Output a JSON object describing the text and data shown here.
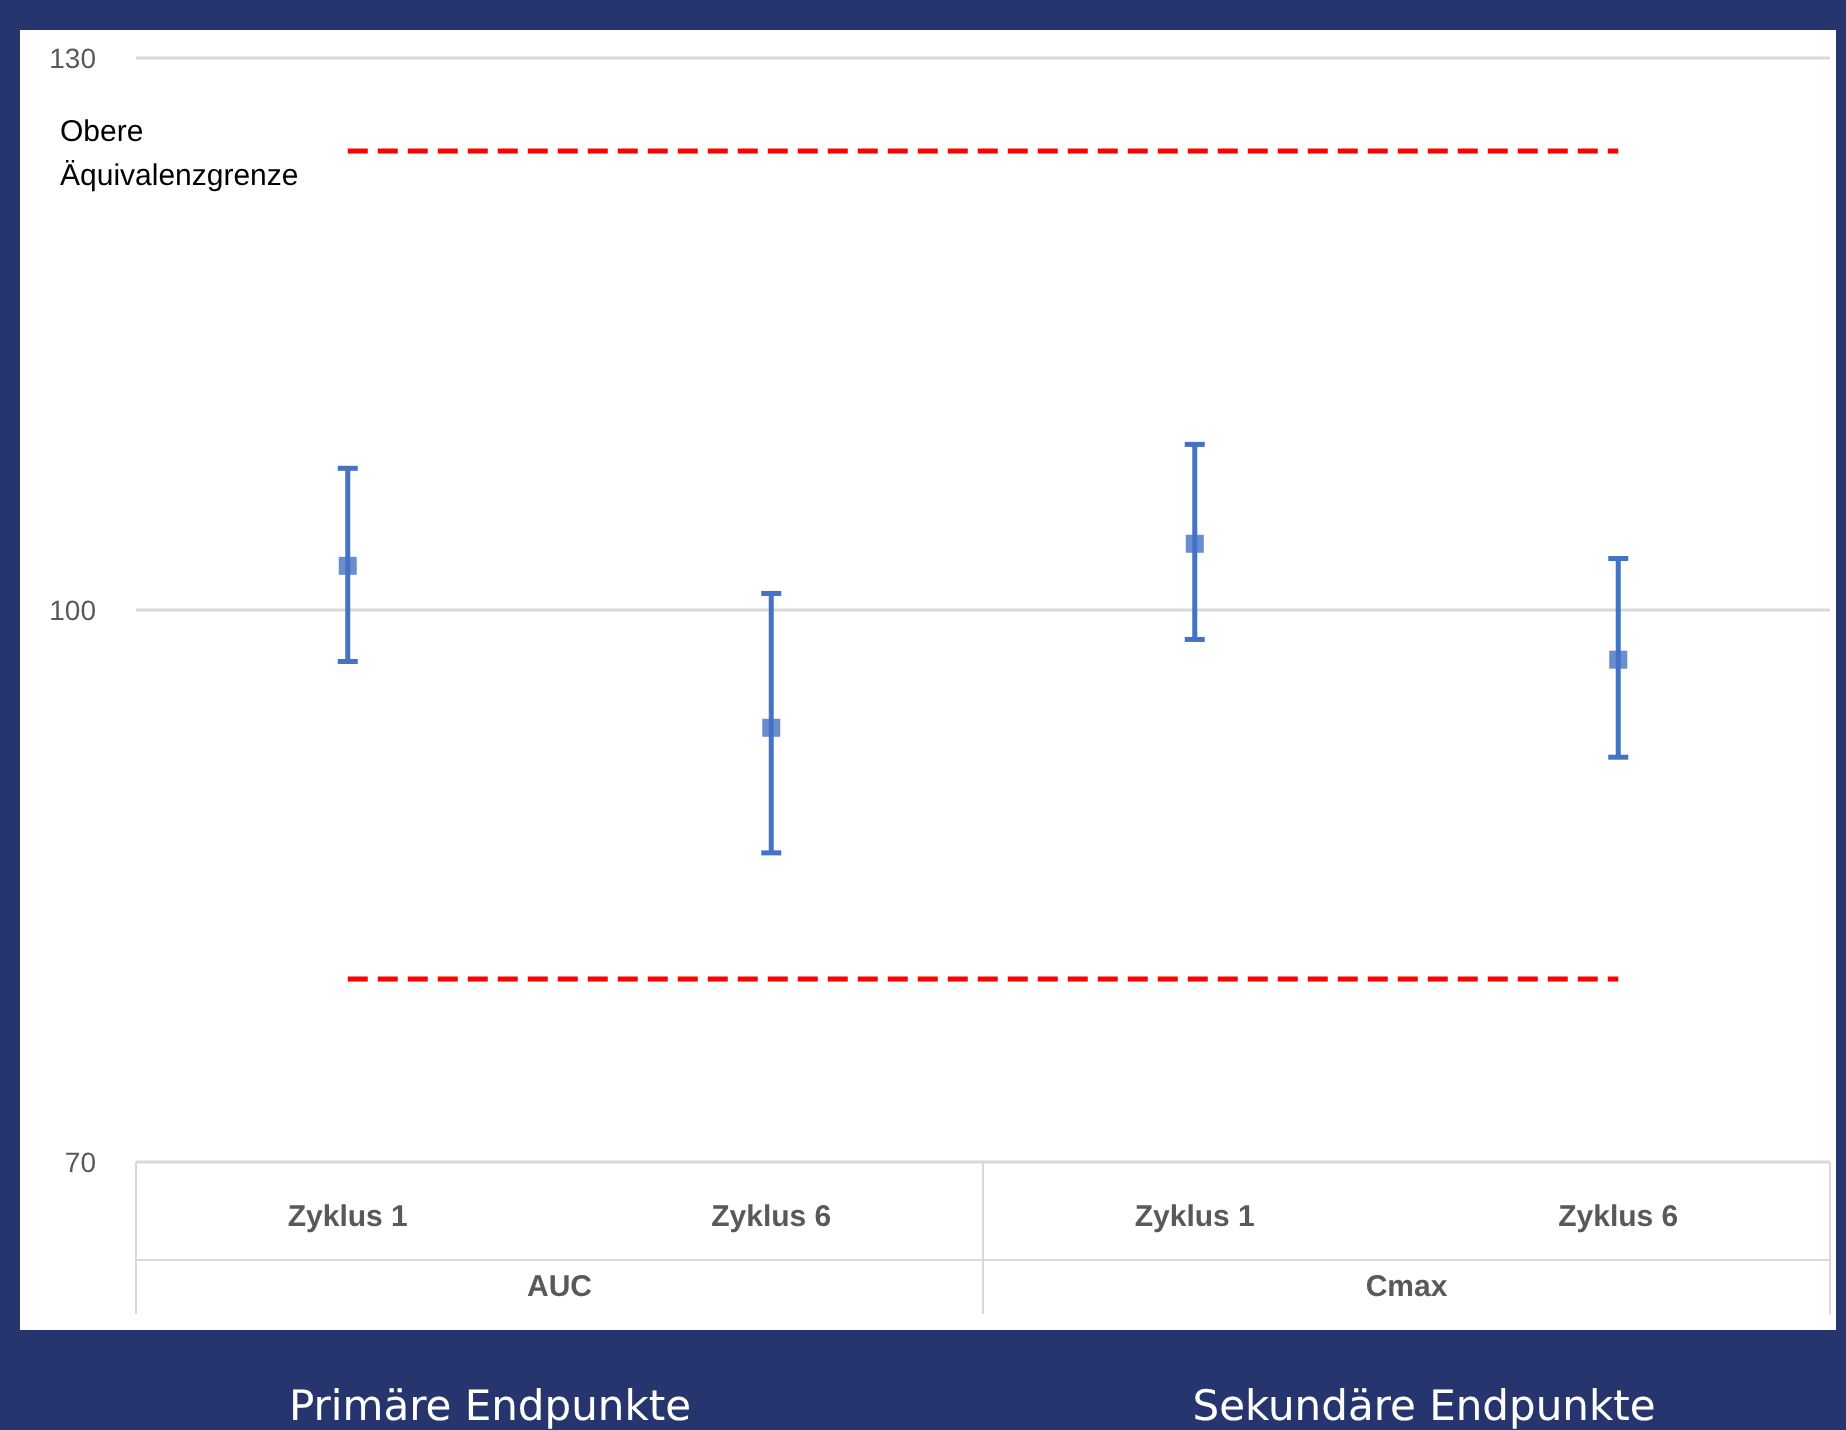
{
  "chart_data": {
    "type": "scatter",
    "categories": [
      "Zyklus 1",
      "Zyklus 6",
      "Zyklus 1",
      "Zyklus 6"
    ],
    "series": [
      {
        "color": "#4472c4",
        "values": [
          102.4,
          93.6,
          103.6,
          97.3
        ],
        "errors": [
          [
            97.2,
            107.7
          ],
          [
            86.8,
            100.9
          ],
          [
            98.4,
            109.0
          ],
          [
            92.0,
            102.8
          ]
        ]
      }
    ],
    "marker": "square",
    "ylim": [
      70,
      130
    ],
    "yticks": [
      70,
      100,
      130
    ],
    "grid": "y",
    "ref_lines": [
      {
        "axis": "y",
        "value": 125,
        "label": "Obere Äquivalenzgrenze",
        "color": "#ff0000",
        "line_style": "dashed"
      },
      {
        "axis": "y",
        "value": 80,
        "color": "#ff0000",
        "line_style": "dashed"
      }
    ],
    "annotations": [
      "AUC",
      "Cmax",
      "Primäre Endpunkte",
      "Sekundäre Endpunkte"
    ]
  }
}
